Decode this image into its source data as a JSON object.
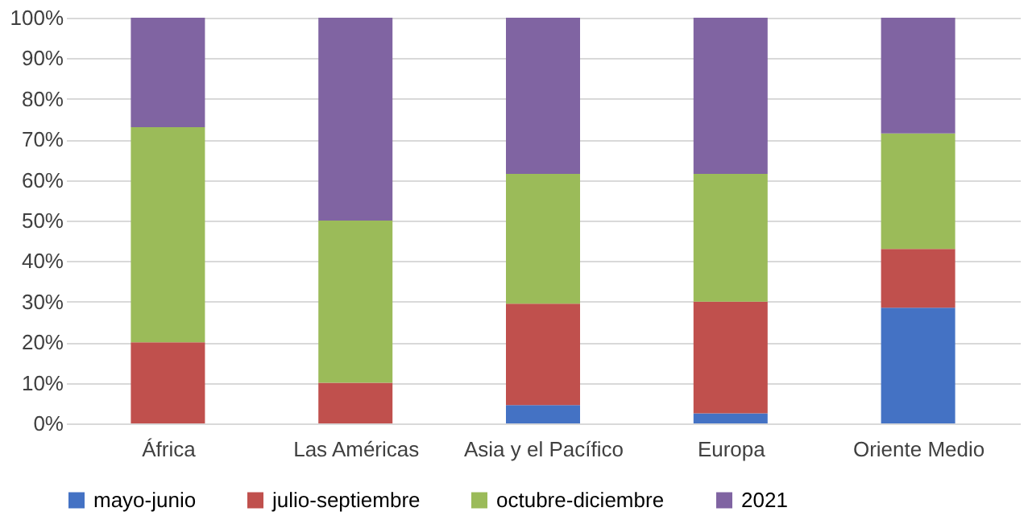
{
  "chart_data": {
    "type": "bar",
    "stacked": true,
    "categories": [
      "África",
      "Las Américas",
      "Asia y el Pacífico",
      "Europa",
      "Oriente Medio"
    ],
    "series": [
      {
        "name": "mayo-junio",
        "color": "#4472c4",
        "values": [
          0,
          0,
          4.5,
          2.5,
          28.5
        ]
      },
      {
        "name": "julio-septiembre",
        "color": "#c0504d",
        "values": [
          20,
          10,
          25,
          27.5,
          14.5
        ]
      },
      {
        "name": "octubre-diciembre",
        "color": "#9bbb59",
        "values": [
          53,
          40,
          32,
          31.5,
          28.5
        ]
      },
      {
        "name": "2021",
        "color": "#8064a2",
        "values": [
          27,
          50,
          38.5,
          38.5,
          28.5
        ]
      }
    ],
    "ylim": [
      0,
      100
    ],
    "yticks": [
      {
        "value": 0,
        "label": "0%"
      },
      {
        "value": 10,
        "label": "10%"
      },
      {
        "value": 20,
        "label": "20%"
      },
      {
        "value": 30,
        "label": "30%"
      },
      {
        "value": 40,
        "label": "40%"
      },
      {
        "value": 50,
        "label": "50%"
      },
      {
        "value": 60,
        "label": "60%"
      },
      {
        "value": 70,
        "label": "70%"
      },
      {
        "value": 80,
        "label": "80%"
      },
      {
        "value": 90,
        "label": "90%"
      },
      {
        "value": 100,
        "label": "100%"
      }
    ],
    "grid": "y",
    "legend": "bottom"
  }
}
